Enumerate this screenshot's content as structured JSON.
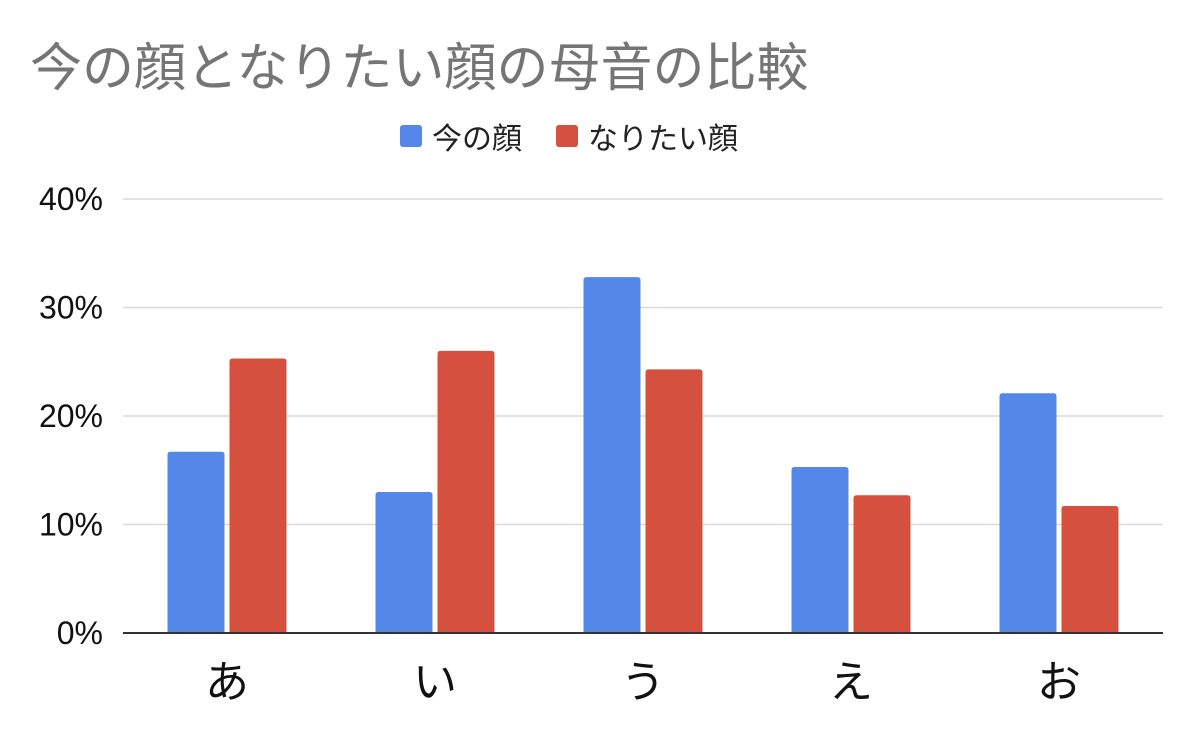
{
  "chart_data": {
    "type": "bar",
    "title": "今の顔となりたい顔の母音の比較",
    "categories": [
      "あ",
      "い",
      "う",
      "え",
      "お"
    ],
    "series": [
      {
        "name": "今の顔",
        "color": "#5587e8",
        "values": [
          16.7,
          13.0,
          32.8,
          15.3,
          22.1
        ]
      },
      {
        "name": "なりたい顔",
        "color": "#d5503e",
        "values": [
          25.3,
          26.0,
          24.3,
          12.7,
          11.7
        ]
      }
    ],
    "y_ticks": [
      "0%",
      "10%",
      "20%",
      "30%",
      "40%"
    ],
    "ylim": [
      0,
      40
    ],
    "y_unit": "%",
    "grid": true,
    "legend_position": "top-center",
    "colors": {
      "title": "#757575",
      "grid": "#d9d9d9",
      "axis": "#333333"
    }
  }
}
